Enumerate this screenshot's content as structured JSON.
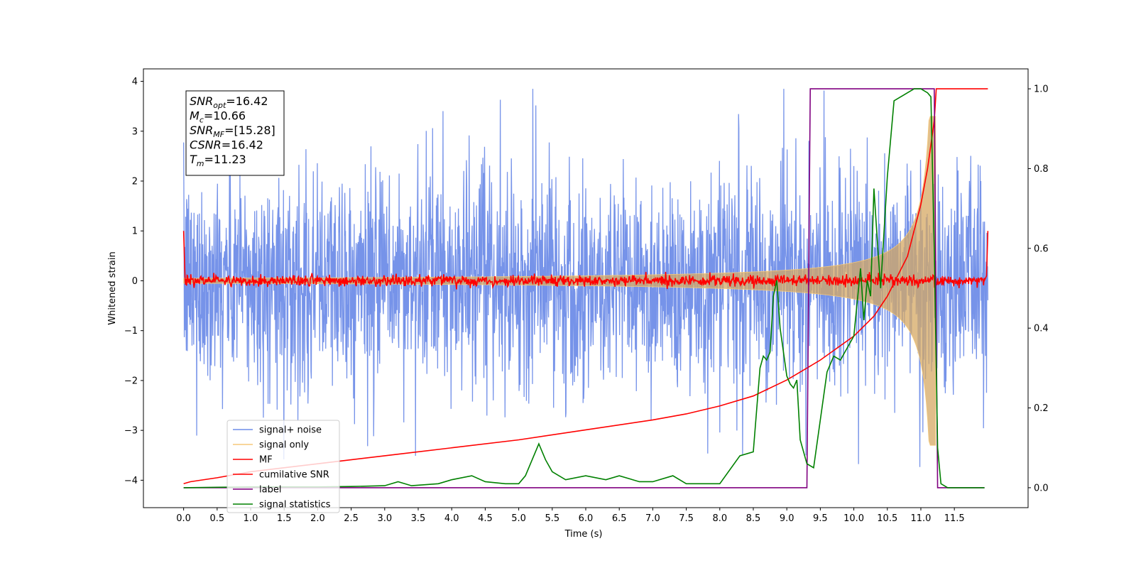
{
  "chart_data": {
    "type": "line",
    "xlabel": "Time (s)",
    "ylabel": "Whitened strain",
    "xlim": [
      -0.6,
      12.6
    ],
    "ylim": [
      -4.55,
      4.25
    ],
    "y2lim": [
      -0.05,
      1.05
    ],
    "x_ticks": [
      "0.0",
      "0.5",
      "1.0",
      "1.5",
      "2.0",
      "2.5",
      "3.0",
      "3.5",
      "4.0",
      "4.5",
      "5.0",
      "5.5",
      "6.0",
      "6.5",
      "7.0",
      "7.5",
      "8.0",
      "8.5",
      "9.0",
      "9.5",
      "10.0",
      "10.5",
      "11.0",
      "11.5"
    ],
    "y_ticks": [
      "−4",
      "−3",
      "−2",
      "−1",
      "0",
      "1",
      "2",
      "3",
      "4"
    ],
    "y2_ticks": [
      "0.0",
      "0.2",
      "0.4",
      "0.6",
      "0.8",
      "1.0"
    ],
    "legend": {
      "placement": "lower-left",
      "entries": [
        {
          "label": "signal+ noise",
          "color": "#6f8de8"
        },
        {
          "label": "signal only",
          "color": "#f5c97a"
        },
        {
          "label": "MF",
          "color": "#ff0000"
        },
        {
          "label": "cumilative SNR",
          "color": "#ff0000"
        },
        {
          "label": "label",
          "color": "#800080"
        },
        {
          "label": "signal statistics",
          "color": "#008000"
        }
      ]
    },
    "annotation": {
      "lines": [
        {
          "base": "SNR",
          "sub": "opt",
          "value": "=16.42"
        },
        {
          "base": "M",
          "sub": "c",
          "value": "=10.66"
        },
        {
          "base": "SNR",
          "sub": "MF",
          "value": "=[15.28]"
        },
        {
          "base": "CSNR",
          "sub": "",
          "value": "=16.42"
        },
        {
          "base": "T",
          "sub": "m",
          "value": "=11.23"
        }
      ]
    },
    "series": [
      {
        "name": "signal+ noise",
        "axis": "left",
        "color": "#6f8de8",
        "x_range": [
          0,
          12
        ],
        "band": [
          -2.6,
          2.7
        ],
        "peak_max": 3.85,
        "peak_min": -4.15
      },
      {
        "name": "signal only",
        "axis": "left",
        "color": "#f5c97a",
        "merger_time": 11.23,
        "amp_start": 0.05,
        "amp_end": 3.3
      },
      {
        "name": "MF",
        "axis": "left",
        "color": "#ff0000",
        "start": 1.0,
        "end": 1.0,
        "level": 0.0
      },
      {
        "name": "cumilative SNR",
        "axis": "right",
        "x": [
          0,
          0.1,
          0.5,
          1,
          2,
          3,
          4,
          5,
          6,
          7,
          7.5,
          8,
          8.5,
          9,
          9.5,
          10,
          10.3,
          10.5,
          10.8,
          11.0,
          11.1,
          11.2,
          11.23,
          11.3,
          12
        ],
        "y": [
          0.01,
          0.015,
          0.025,
          0.04,
          0.06,
          0.08,
          0.1,
          0.12,
          0.145,
          0.17,
          0.185,
          0.205,
          0.23,
          0.27,
          0.32,
          0.38,
          0.43,
          0.48,
          0.58,
          0.71,
          0.8,
          0.92,
          1.0,
          1.0,
          1.0
        ]
      },
      {
        "name": "label",
        "axis": "right",
        "color": "#800080",
        "x": [
          0,
          9.3,
          9.35,
          11.2,
          11.25,
          11.95
        ],
        "y": [
          0,
          0,
          1,
          1,
          0,
          0
        ]
      },
      {
        "name": "signal statistics",
        "axis": "right",
        "color": "#008000",
        "x": [
          0,
          0.5,
          1,
          1.5,
          2,
          2.5,
          3,
          3.2,
          3.4,
          3.8,
          4,
          4.3,
          4.5,
          4.8,
          5,
          5.1,
          5.2,
          5.3,
          5.4,
          5.5,
          5.7,
          6,
          6.3,
          6.5,
          6.8,
          7,
          7.3,
          7.5,
          7.8,
          8,
          8.3,
          8.5,
          8.6,
          8.65,
          8.7,
          8.75,
          8.8,
          8.85,
          8.9,
          9.0,
          9.05,
          9.1,
          9.15,
          9.2,
          9.3,
          9.4,
          9.5,
          9.6,
          9.7,
          9.8,
          9.9,
          10.0,
          10.1,
          10.15,
          10.2,
          10.25,
          10.3,
          10.35,
          10.4,
          10.5,
          10.6,
          10.7,
          10.8,
          10.9,
          11.0,
          11.1,
          11.15,
          11.2,
          11.25,
          11.3,
          11.4,
          11.95
        ],
        "y": [
          0,
          0.001,
          0.002,
          0.002,
          0.002,
          0.003,
          0.005,
          0.015,
          0.005,
          0.01,
          0.02,
          0.03,
          0.015,
          0.01,
          0.01,
          0.03,
          0.07,
          0.11,
          0.07,
          0.04,
          0.02,
          0.03,
          0.02,
          0.03,
          0.015,
          0.015,
          0.03,
          0.01,
          0.01,
          0.01,
          0.08,
          0.09,
          0.3,
          0.33,
          0.32,
          0.34,
          0.48,
          0.52,
          0.4,
          0.28,
          0.26,
          0.25,
          0.27,
          0.12,
          0.06,
          0.05,
          0.17,
          0.29,
          0.33,
          0.32,
          0.35,
          0.38,
          0.55,
          0.42,
          0.52,
          0.48,
          0.75,
          0.62,
          0.5,
          0.78,
          0.97,
          0.98,
          0.99,
          1.0,
          1.0,
          0.99,
          0.98,
          0.6,
          0.1,
          0.01,
          0,
          0
        ]
      }
    ]
  }
}
